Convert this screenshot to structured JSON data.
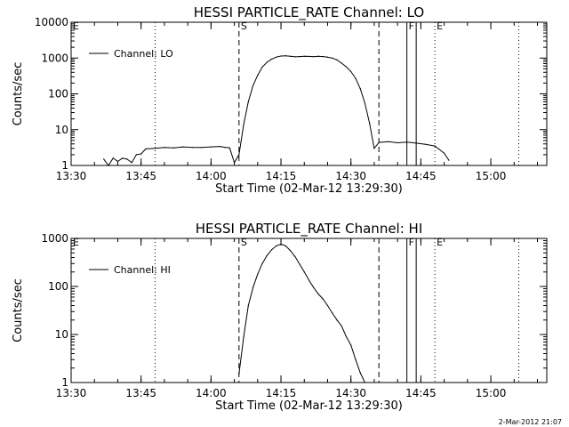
{
  "footer": {
    "timestamp": "2-Mar-2012 21:07"
  },
  "chart_data": [
    {
      "type": "line",
      "title": "HESSI PARTICLE_RATE Channel: LO",
      "xlabel": "Start Time (02-Mar-12 13:29:30)",
      "ylabel": "Counts/sec",
      "yscale": "log",
      "xlim": [
        "13:30",
        "15:12"
      ],
      "ylim": [
        1,
        10000
      ],
      "x_ticks": [
        "13:30",
        "13:45",
        "14:00",
        "14:15",
        "14:30",
        "14:45",
        "15:00"
      ],
      "y_ticks": [
        "1",
        "10",
        "100",
        "1000",
        "10000"
      ],
      "legend": {
        "position": "top-left",
        "entries": [
          "Channel: LO"
        ]
      },
      "series": [
        {
          "name": "Channel: LO",
          "x": [
            "13:37",
            "13:38",
            "13:39",
            "13:40",
            "13:41",
            "13:42",
            "13:43",
            "13:44",
            "13:45",
            "13:46",
            "13:48",
            "13:50",
            "13:52",
            "13:54",
            "13:56",
            "13:58",
            "14:00",
            "14:02",
            "14:03",
            "14:04",
            "14:05",
            "14:06",
            "14:07",
            "14:08",
            "14:09",
            "14:10",
            "14:11",
            "14:12",
            "14:13",
            "14:14",
            "14:15",
            "14:16",
            "14:17",
            "14:18",
            "14:19",
            "14:20",
            "14:21",
            "14:22",
            "14:23",
            "14:24",
            "14:25",
            "14:26",
            "14:27",
            "14:28",
            "14:29",
            "14:30",
            "14:31",
            "14:32",
            "14:33",
            "14:34",
            "14:35",
            "14:36",
            "14:38",
            "14:40",
            "14:42",
            "14:44",
            "14:46",
            "14:48",
            "14:50",
            "14:51"
          ],
          "y": [
            1.5,
            1,
            1.6,
            1.3,
            1.6,
            1.5,
            1.2,
            2,
            2.1,
            2.9,
            3,
            3.2,
            3.1,
            3.3,
            3.2,
            3.2,
            3.3,
            3.4,
            3.2,
            3.1,
            1.2,
            2,
            14,
            60,
            170,
            330,
            560,
            760,
            930,
            1060,
            1140,
            1160,
            1120,
            1080,
            1100,
            1120,
            1110,
            1090,
            1120,
            1100,
            1060,
            1000,
            890,
            720,
            570,
            420,
            270,
            140,
            55,
            15,
            3,
            4.4,
            4.6,
            4.3,
            4.5,
            4.2,
            3.9,
            3.5,
            2.2,
            1.4
          ]
        }
      ],
      "markers": [
        {
          "x": "14:06",
          "label": "S",
          "style": "dashed"
        },
        {
          "x": "14:36",
          "label": "",
          "style": "dashed"
        },
        {
          "x": "14:42",
          "label": "F",
          "style": "solid"
        },
        {
          "x": "14:44",
          "label": "",
          "style": "solid"
        },
        {
          "x": "14:48",
          "label": "E",
          "style": "dotted"
        },
        {
          "x": "13:48",
          "label": "",
          "style": "dotted"
        },
        {
          "x": "15:06",
          "label": "",
          "style": "dotted"
        },
        {
          "x": "13:30",
          "label": "E",
          "style": "dotted"
        }
      ]
    },
    {
      "type": "line",
      "title": "HESSI PARTICLE_RATE Channel: HI",
      "xlabel": "Start Time (02-Mar-12 13:29:30)",
      "ylabel": "Counts/sec",
      "yscale": "log",
      "xlim": [
        "13:30",
        "15:12"
      ],
      "ylim": [
        1,
        1000
      ],
      "x_ticks": [
        "13:30",
        "13:45",
        "14:00",
        "14:15",
        "14:30",
        "14:45",
        "15:00"
      ],
      "y_ticks": [
        "1",
        "10",
        "100",
        "1000"
      ],
      "legend": {
        "position": "top-left",
        "entries": [
          "Channel: HI"
        ]
      },
      "series": [
        {
          "name": "Channel: HI",
          "x": [
            "14:06",
            "14:07",
            "14:08",
            "14:09",
            "14:10",
            "14:11",
            "14:12",
            "14:13",
            "14:14",
            "14:15",
            "14:16",
            "14:17",
            "14:18",
            "14:19",
            "14:20",
            "14:21",
            "14:22",
            "14:23",
            "14:24",
            "14:25",
            "14:26",
            "14:27",
            "14:28",
            "14:29",
            "14:30",
            "14:31",
            "14:32",
            "14:33"
          ],
          "y": [
            1.5,
            9,
            40,
            95,
            180,
            300,
            440,
            580,
            700,
            760,
            700,
            560,
            420,
            290,
            200,
            135,
            95,
            70,
            55,
            40,
            28,
            20,
            15,
            9,
            6,
            3,
            1.6,
            1
          ]
        }
      ],
      "markers": [
        {
          "x": "14:06",
          "label": "S",
          "style": "dashed"
        },
        {
          "x": "14:36",
          "label": "",
          "style": "dashed"
        },
        {
          "x": "14:42",
          "label": "F",
          "style": "solid"
        },
        {
          "x": "14:44",
          "label": "",
          "style": "solid"
        },
        {
          "x": "14:48",
          "label": "E",
          "style": "dotted"
        },
        {
          "x": "13:48",
          "label": "",
          "style": "dotted"
        },
        {
          "x": "15:06",
          "label": "",
          "style": "dotted"
        },
        {
          "x": "13:30",
          "label": "E",
          "style": "dotted"
        }
      ]
    }
  ]
}
